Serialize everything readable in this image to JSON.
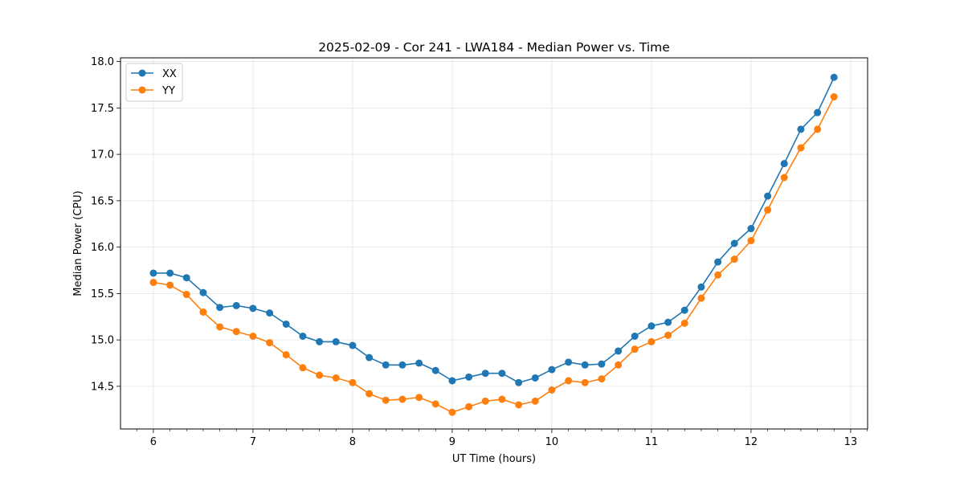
{
  "chart_data": {
    "type": "line",
    "title": "2025-02-09 - Cor 241 - LWA184 - Median Power vs. Time",
    "xlabel": "UT Time (hours)",
    "ylabel": "Median Power (CPU)",
    "xlim": [
      5.67,
      13.17
    ],
    "ylim": [
      14.04,
      18.04
    ],
    "x_ticks": [
      6,
      7,
      8,
      9,
      10,
      11,
      12,
      13
    ],
    "x_tick_labels": [
      "6",
      "7",
      "8",
      "9",
      "10",
      "11",
      "12",
      "13"
    ],
    "y_ticks": [
      14.5,
      15.0,
      15.5,
      16.0,
      16.5,
      17.0,
      17.5,
      18.0
    ],
    "y_tick_labels": [
      "14.5",
      "15.0",
      "15.5",
      "16.0",
      "16.5",
      "17.0",
      "17.5",
      "18.0"
    ],
    "grid": true,
    "legend_position": "top-left",
    "x": [
      6.0,
      6.167,
      6.333,
      6.5,
      6.667,
      6.833,
      7.0,
      7.167,
      7.333,
      7.5,
      7.667,
      7.833,
      8.0,
      8.167,
      8.333,
      8.5,
      8.667,
      8.833,
      9.0,
      9.167,
      9.333,
      9.5,
      9.667,
      9.833,
      10.0,
      10.167,
      10.333,
      10.5,
      10.667,
      10.833,
      11.0,
      11.167,
      11.333,
      11.5,
      11.667,
      11.833,
      12.0,
      12.167,
      12.333,
      12.5,
      12.667,
      12.833
    ],
    "series": [
      {
        "name": "XX",
        "color": "#1f77b4",
        "values": [
          15.72,
          15.72,
          15.67,
          15.51,
          15.35,
          15.37,
          15.34,
          15.29,
          15.17,
          15.04,
          14.98,
          14.98,
          14.94,
          14.81,
          14.73,
          14.73,
          14.75,
          14.67,
          14.56,
          14.6,
          14.64,
          14.64,
          14.54,
          14.59,
          14.68,
          14.76,
          14.73,
          14.74,
          14.88,
          15.04,
          15.15,
          15.19,
          15.32,
          15.57,
          15.84,
          16.04,
          16.2,
          16.55,
          16.9,
          17.27,
          17.45,
          17.83
        ]
      },
      {
        "name": "YY",
        "color": "#ff7f0e",
        "values": [
          15.62,
          15.59,
          15.49,
          15.3,
          15.14,
          15.09,
          15.04,
          14.97,
          14.84,
          14.7,
          14.62,
          14.59,
          14.54,
          14.42,
          14.35,
          14.36,
          14.38,
          14.31,
          14.22,
          14.28,
          14.34,
          14.36,
          14.3,
          14.34,
          14.46,
          14.56,
          14.54,
          14.58,
          14.73,
          14.9,
          14.98,
          15.05,
          15.18,
          15.45,
          15.7,
          15.87,
          16.07,
          16.4,
          16.75,
          17.07,
          17.27,
          17.62
        ]
      }
    ]
  }
}
